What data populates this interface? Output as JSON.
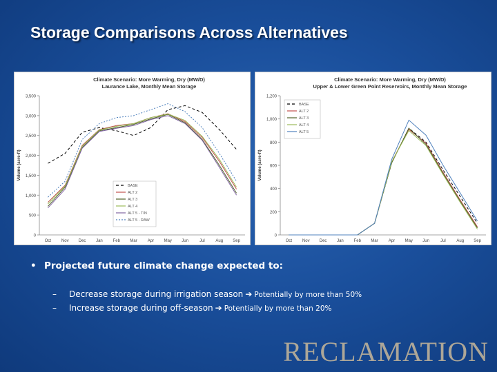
{
  "slide": {
    "title": "Storage Comparisons Across Alternatives",
    "bullet": "Projected future climate change expected to:",
    "subs": [
      {
        "dash": "–",
        "text": "Decrease storage during irrigation season",
        "note": "Potentially by more than 50%"
      },
      {
        "dash": "–",
        "text": "Increase storage during off-season",
        "note": "Potentially by more than 20%"
      }
    ],
    "logo": "RECLAMATION"
  },
  "chart_data": [
    {
      "type": "line",
      "title": "Climate Scenario: More Warming, Dry (MW/D)",
      "subtitle": "Laurance Lake, Monthly Mean Storage",
      "xlabel": "",
      "ylabel": "Volume (acre-ft)",
      "ylim": [
        0,
        3500
      ],
      "yticks": [
        0,
        500,
        1000,
        1500,
        2000,
        2500,
        3000,
        3500
      ],
      "ytick_labels": [
        "0",
        "500",
        "1,000",
        "1,500",
        "2,000",
        "2,500",
        "3,000",
        "3,500"
      ],
      "categories": [
        "Oct",
        "Nov",
        "Dec",
        "Jan",
        "Feb",
        "Mar",
        "Apr",
        "May",
        "Jun",
        "Jul",
        "Aug",
        "Sep"
      ],
      "legend_position": "bottom-right",
      "series": [
        {
          "name": "BASE",
          "color": "#000000",
          "dash": "4,3",
          "values": [
            1800,
            2050,
            2580,
            2700,
            2620,
            2500,
            2700,
            3150,
            3250,
            3080,
            2650,
            2150
          ]
        },
        {
          "name": "ALT 2",
          "color": "#c0504d",
          "dash": "",
          "values": [
            820,
            1250,
            2250,
            2650,
            2750,
            2800,
            2950,
            3050,
            2850,
            2450,
            1850,
            1150
          ]
        },
        {
          "name": "ALT 3",
          "color": "#4f6228",
          "dash": "",
          "values": [
            720,
            1200,
            2200,
            2620,
            2700,
            2780,
            2920,
            3030,
            2820,
            2400,
            1750,
            1050
          ]
        },
        {
          "name": "ALT 4",
          "color": "#9bbb59",
          "dash": "",
          "values": [
            780,
            1230,
            2230,
            2640,
            2730,
            2800,
            2950,
            3040,
            2880,
            2480,
            1900,
            1200
          ]
        },
        {
          "name": "ALT 5 - TIN",
          "color": "#8064a2",
          "dash": "",
          "values": [
            680,
            1150,
            2180,
            2600,
            2680,
            2750,
            2900,
            3000,
            2800,
            2380,
            1700,
            1000
          ]
        },
        {
          "name": "ALT 5 - RAW",
          "color": "#4f81bd",
          "dash": "2,2",
          "values": [
            950,
            1350,
            2400,
            2800,
            2950,
            3000,
            3150,
            3300,
            3100,
            2700,
            2050,
            1350
          ]
        }
      ]
    },
    {
      "type": "line",
      "title": "Climate Scenario: More Warming, Dry (MW/D)",
      "subtitle": "Upper & Lower Green Point Reservoirs, Monthly Mean Storage",
      "xlabel": "",
      "ylabel": "Volume (acre-ft)",
      "ylim": [
        0,
        1200
      ],
      "yticks": [
        0,
        200,
        400,
        600,
        800,
        1000,
        1200
      ],
      "ytick_labels": [
        "0",
        "200",
        "400",
        "600",
        "800",
        "1,000",
        "1,200"
      ],
      "categories": [
        "Oct",
        "Nov",
        "Dec",
        "Jan",
        "Feb",
        "Mar",
        "Apr",
        "May",
        "Jun",
        "Jul",
        "Aug",
        "Sep"
      ],
      "legend_position": "top-left",
      "series": [
        {
          "name": "BASE",
          "color": "#000000",
          "dash": "4,3",
          "values": [
            0,
            0,
            0,
            0,
            0,
            100,
            620,
            920,
            800,
            560,
            330,
            100
          ]
        },
        {
          "name": "ALT 2",
          "color": "#c0504d",
          "dash": "",
          "values": [
            0,
            0,
            0,
            0,
            0,
            100,
            630,
            910,
            790,
            540,
            300,
            70
          ]
        },
        {
          "name": "ALT 3",
          "color": "#4f6228",
          "dash": "",
          "values": [
            0,
            0,
            0,
            0,
            0,
            100,
            620,
            920,
            780,
            530,
            290,
            60
          ]
        },
        {
          "name": "ALT 4",
          "color": "#9bbb59",
          "dash": "",
          "values": [
            0,
            0,
            0,
            0,
            0,
            100,
            630,
            900,
            770,
            520,
            280,
            50
          ]
        },
        {
          "name": "ALT 5",
          "color": "#4f81bd",
          "dash": "",
          "values": [
            0,
            0,
            0,
            0,
            0,
            100,
            650,
            990,
            860,
            600,
            360,
            120
          ]
        }
      ]
    }
  ]
}
